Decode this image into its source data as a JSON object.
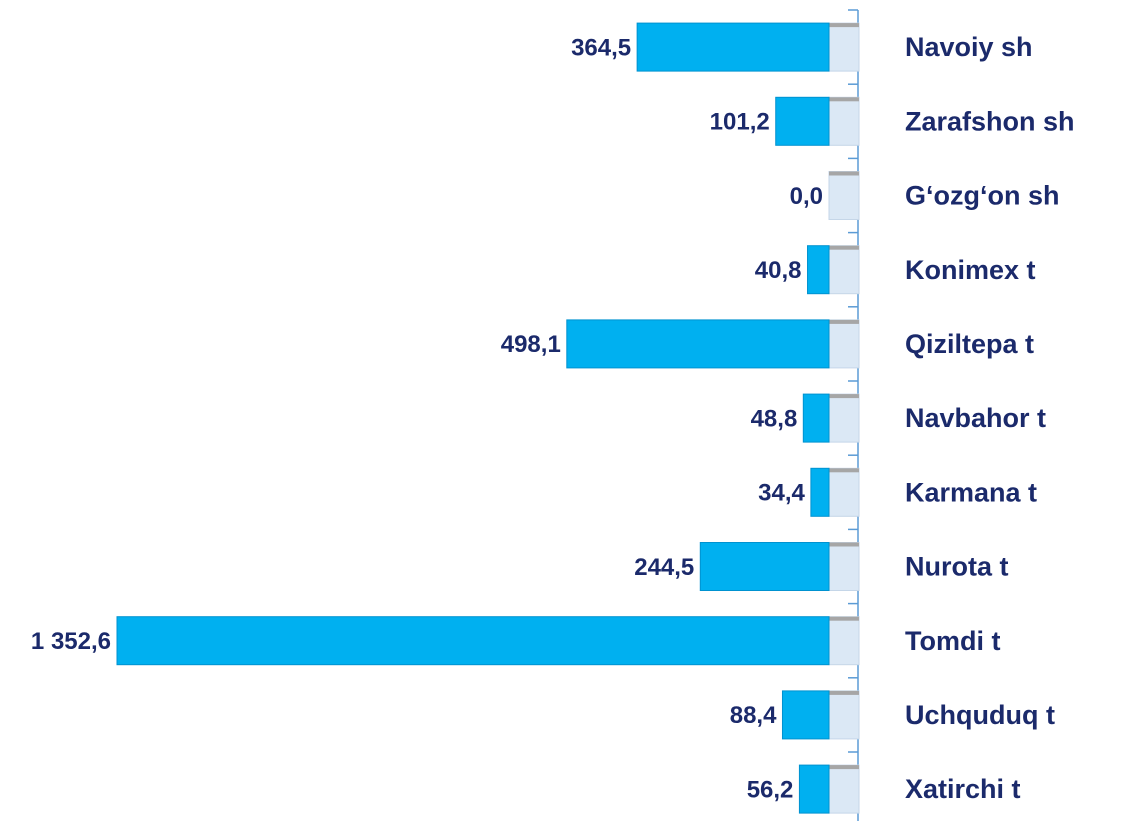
{
  "chart_data": {
    "type": "bar",
    "orientation": "horizontal",
    "categories": [
      "Navoiy sh",
      "Zarafshon sh",
      "G‘ozg‘on sh",
      "Konimex t",
      "Qiziltepa t",
      "Navbahor t",
      "Karmana t",
      "Nurota t",
      "Tomdi t",
      "Uchquduq t",
      "Xatirchi t"
    ],
    "values": [
      364.5,
      101.2,
      0.0,
      40.8,
      498.1,
      48.8,
      34.4,
      244.5,
      1352.6,
      88.4,
      56.2
    ],
    "value_labels": [
      "364,5",
      "101,2",
      "0,0",
      "40,8",
      "498,1",
      "48,8",
      "34,4",
      "244,5",
      "1 352,6",
      "88,4",
      "56,2"
    ],
    "color": "#00b0f0"
  }
}
